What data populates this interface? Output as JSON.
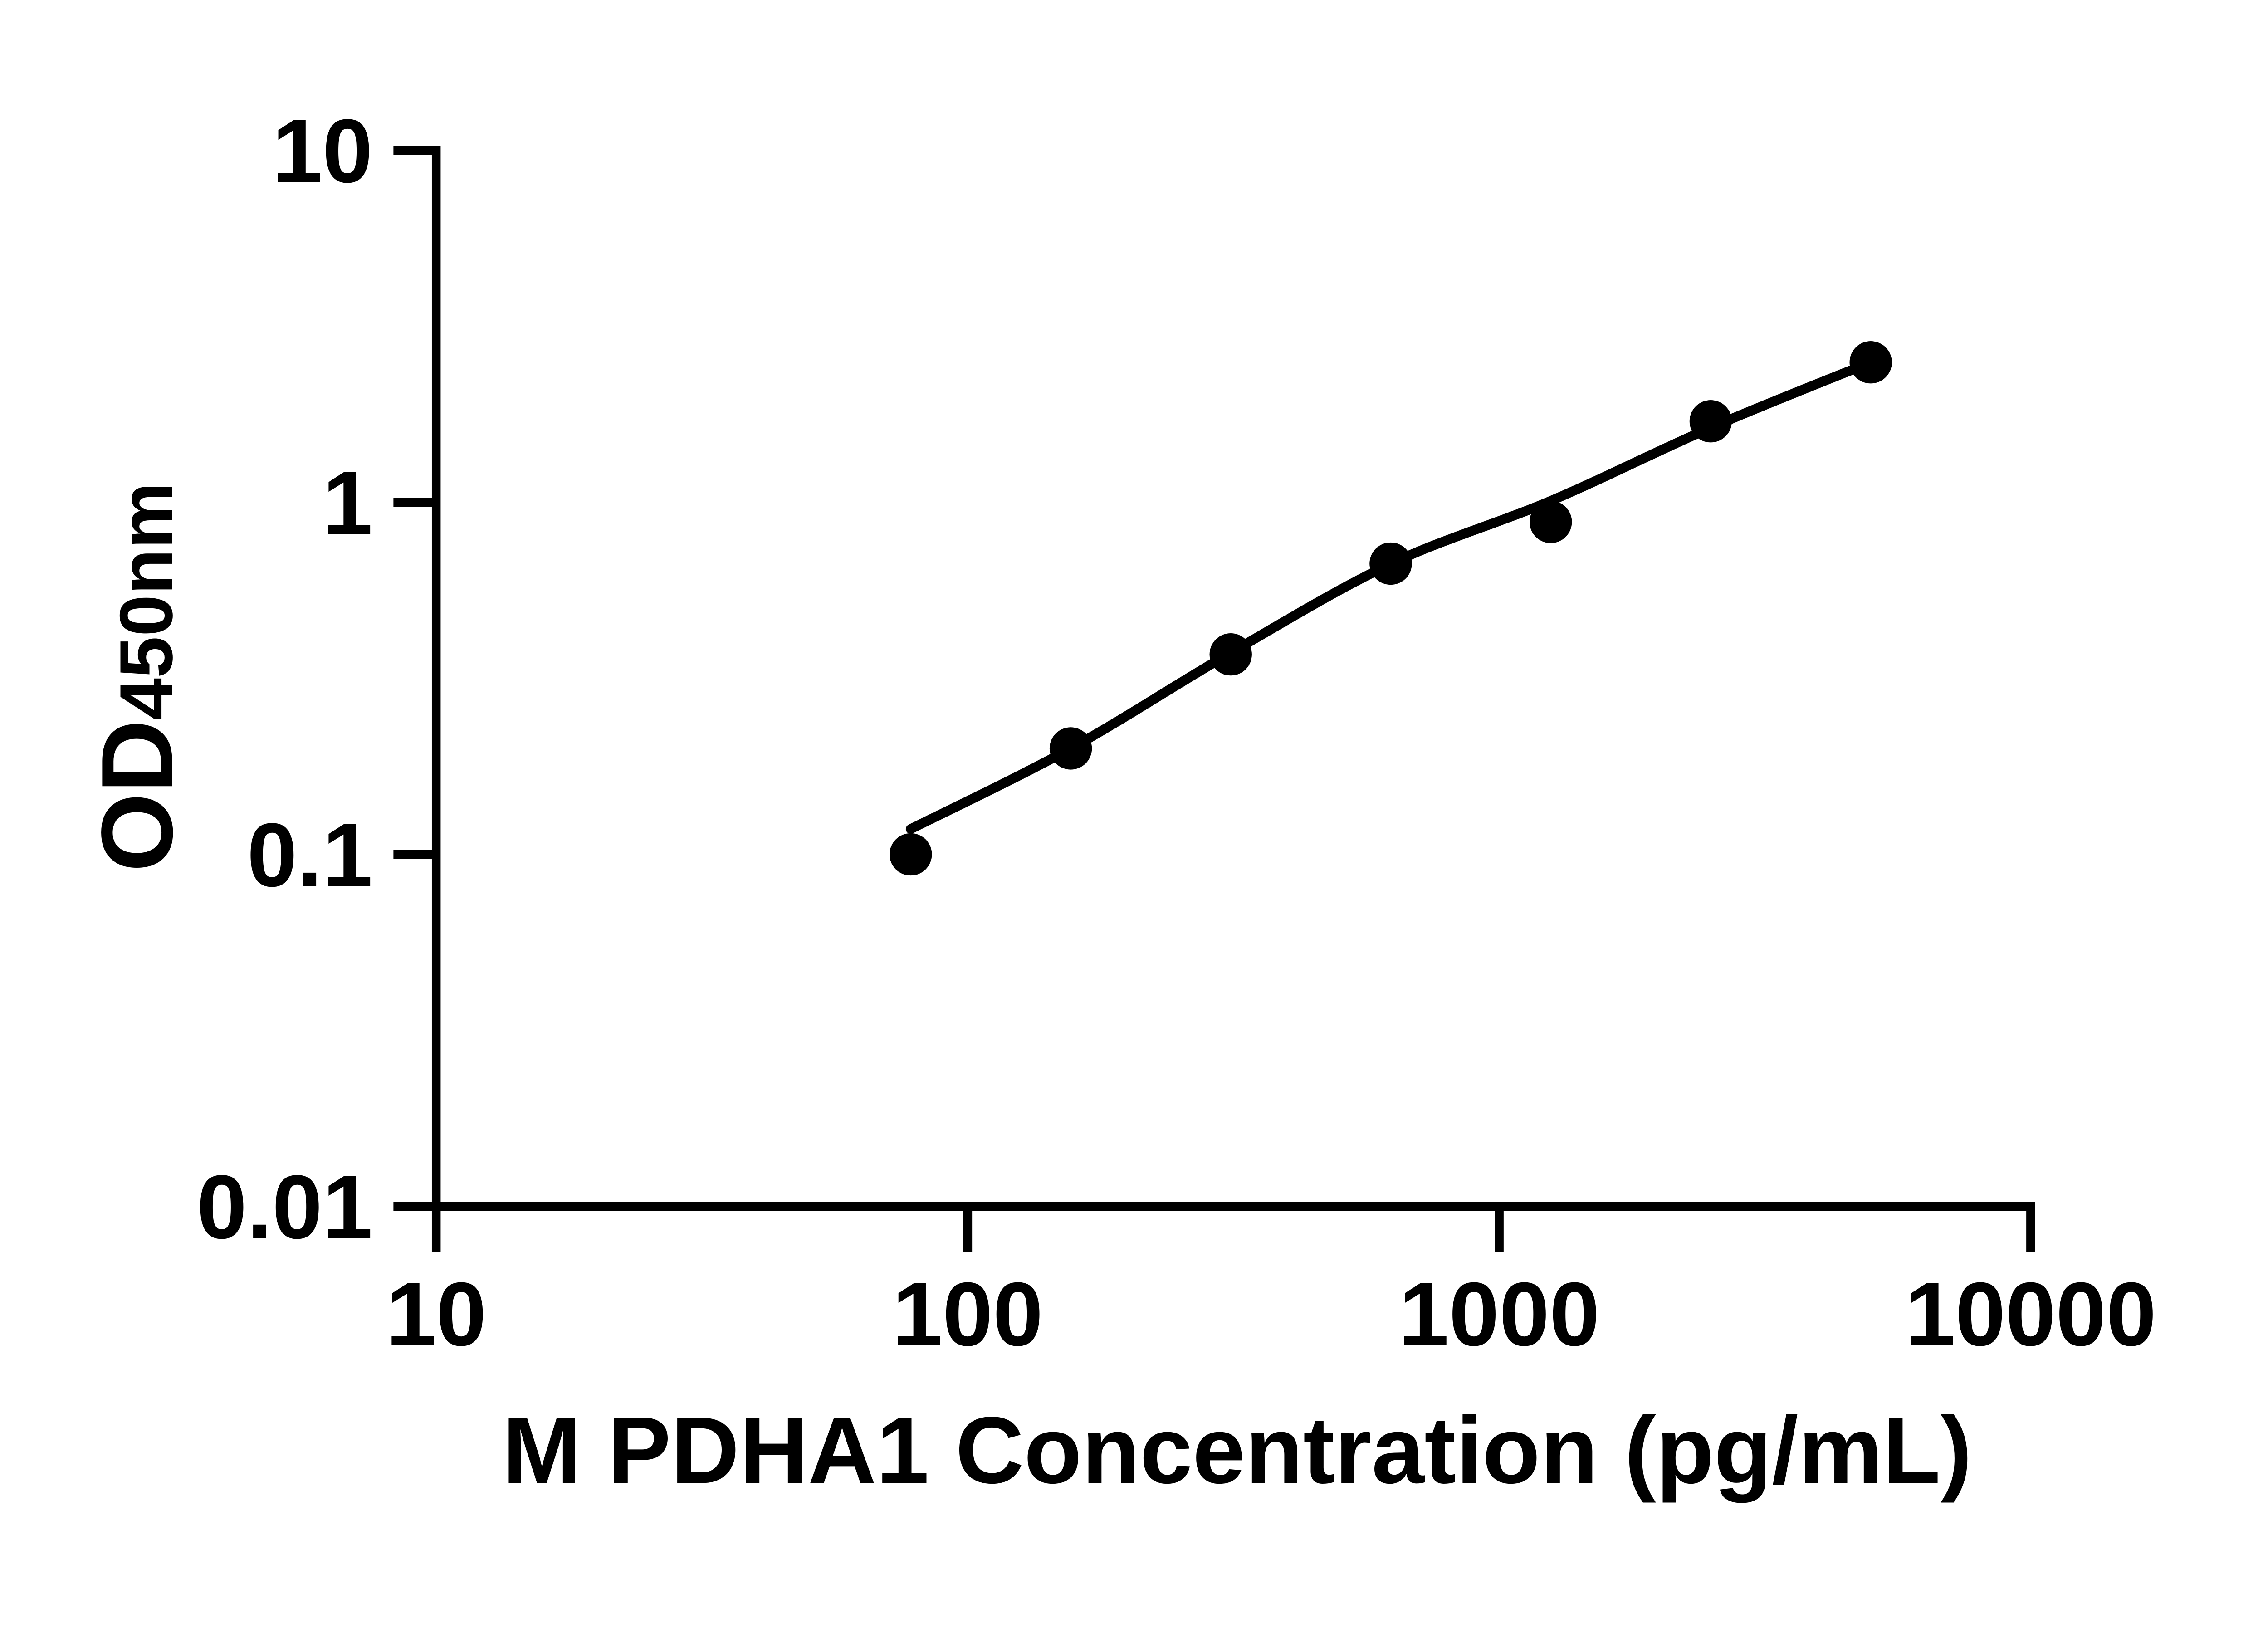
{
  "figure": {
    "background": "#ffffff",
    "ink_color": "#000000"
  },
  "chart_data": {
    "type": "scatter",
    "title": "",
    "xlabel": "M PDHA1 Concentration (pg/mL)",
    "ylabel_main": "OD",
    "ylabel_sub": "450nm",
    "x_scale": "log",
    "y_scale": "log",
    "xlim": [
      10,
      10000
    ],
    "ylim": [
      0.01,
      10
    ],
    "grid": false,
    "legend_position": "none",
    "x_ticks": [
      10,
      100,
      1000,
      10000
    ],
    "x_tick_labels": [
      "10",
      "100",
      "1000",
      "10000"
    ],
    "y_ticks": [
      0.01,
      0.1,
      1,
      10
    ],
    "y_tick_labels": [
      "0.01",
      "0.1",
      "1",
      "10"
    ],
    "series": [
      {
        "name": "standard-points",
        "type": "scatter",
        "marker": "filled-circle",
        "color": "#000000",
        "x": [
          78.125,
          156.25,
          312.5,
          625,
          1250,
          2500,
          5000
        ],
        "y": [
          0.1,
          0.2,
          0.37,
          0.67,
          0.88,
          1.7,
          2.5
        ]
      },
      {
        "name": "fit-curve",
        "type": "line",
        "color": "#000000",
        "x": [
          78.1,
          156.25,
          312.5,
          625,
          1250,
          2500,
          5000
        ],
        "y": [
          0.118,
          0.2,
          0.374,
          0.669,
          1.01,
          1.63,
          2.5
        ]
      }
    ]
  }
}
